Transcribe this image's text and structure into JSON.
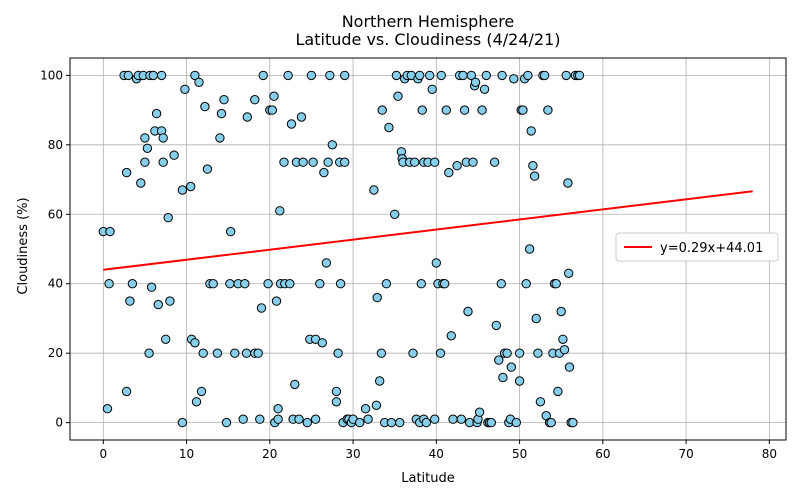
{
  "chart_data": {
    "type": "scatter",
    "title": "Northern Hemisphere",
    "subtitle": "Latitude vs. Cloudiness (4/24/21)",
    "xlabel": "Latitude",
    "ylabel": "Cloudiness (%)",
    "xlim": [
      -4,
      82
    ],
    "ylim": [
      -5,
      105
    ],
    "xticks": [
      0,
      10,
      20,
      30,
      40,
      50,
      60,
      70,
      80
    ],
    "yticks": [
      0,
      20,
      40,
      60,
      80,
      100
    ],
    "grid": true,
    "legend_position": "right",
    "marker_color": "#87ceeb",
    "marker_edge": "#000000",
    "regression": {
      "label": "y=0.29x+44.01",
      "slope": 0.29,
      "intercept": 44.01,
      "x_range": [
        0,
        78
      ],
      "color": "#ff0000"
    },
    "points": [
      [
        0.0,
        55
      ],
      [
        0.5,
        4
      ],
      [
        0.7,
        40
      ],
      [
        0.8,
        55
      ],
      [
        2.5,
        100
      ],
      [
        2.8,
        9
      ],
      [
        2.8,
        72
      ],
      [
        3.0,
        100
      ],
      [
        3.2,
        35
      ],
      [
        3.5,
        40
      ],
      [
        4.0,
        99
      ],
      [
        4.2,
        100
      ],
      [
        4.5,
        69
      ],
      [
        4.8,
        100
      ],
      [
        5.0,
        75
      ],
      [
        5.0,
        82
      ],
      [
        5.3,
        79
      ],
      [
        5.5,
        20
      ],
      [
        5.6,
        100
      ],
      [
        5.8,
        39
      ],
      [
        6.0,
        100
      ],
      [
        6.2,
        84
      ],
      [
        6.4,
        89
      ],
      [
        6.6,
        34
      ],
      [
        7.0,
        100
      ],
      [
        7.0,
        84
      ],
      [
        7.2,
        82
      ],
      [
        7.2,
        75
      ],
      [
        7.5,
        24
      ],
      [
        7.8,
        59
      ],
      [
        8.0,
        35
      ],
      [
        8.5,
        77
      ],
      [
        9.5,
        0
      ],
      [
        9.5,
        67
      ],
      [
        9.8,
        96
      ],
      [
        10.5,
        68
      ],
      [
        10.6,
        24
      ],
      [
        11.0,
        100
      ],
      [
        11.0,
        23
      ],
      [
        11.2,
        6
      ],
      [
        11.5,
        98
      ],
      [
        11.8,
        9
      ],
      [
        12.0,
        20
      ],
      [
        12.2,
        91
      ],
      [
        12.5,
        73
      ],
      [
        12.8,
        40
      ],
      [
        13.2,
        40
      ],
      [
        13.7,
        20
      ],
      [
        14.0,
        82
      ],
      [
        14.2,
        89
      ],
      [
        14.5,
        93
      ],
      [
        14.8,
        0
      ],
      [
        15.2,
        40
      ],
      [
        15.3,
        55
      ],
      [
        15.8,
        20
      ],
      [
        16.2,
        40
      ],
      [
        16.8,
        1
      ],
      [
        17.0,
        40
      ],
      [
        17.2,
        20
      ],
      [
        17.3,
        88
      ],
      [
        18.2,
        93
      ],
      [
        18.2,
        20
      ],
      [
        18.6,
        20
      ],
      [
        18.8,
        1
      ],
      [
        19.0,
        33
      ],
      [
        19.2,
        100
      ],
      [
        19.8,
        40
      ],
      [
        20.0,
        90
      ],
      [
        20.3,
        90
      ],
      [
        20.5,
        94
      ],
      [
        20.6,
        0
      ],
      [
        20.8,
        35
      ],
      [
        21.0,
        1
      ],
      [
        21.0,
        4
      ],
      [
        21.2,
        61
      ],
      [
        21.3,
        40
      ],
      [
        21.7,
        75
      ],
      [
        21.8,
        40
      ],
      [
        22.2,
        100
      ],
      [
        22.4,
        40
      ],
      [
        22.6,
        86
      ],
      [
        22.8,
        1
      ],
      [
        23.0,
        11
      ],
      [
        23.2,
        75
      ],
      [
        23.5,
        1
      ],
      [
        23.8,
        88
      ],
      [
        24.0,
        75
      ],
      [
        24.5,
        0
      ],
      [
        24.8,
        24
      ],
      [
        25.0,
        100
      ],
      [
        25.2,
        75
      ],
      [
        25.5,
        1
      ],
      [
        25.5,
        24
      ],
      [
        26.0,
        40
      ],
      [
        26.3,
        23
      ],
      [
        26.5,
        72
      ],
      [
        26.8,
        46
      ],
      [
        27.0,
        75
      ],
      [
        27.2,
        100
      ],
      [
        27.5,
        80
      ],
      [
        28.0,
        9
      ],
      [
        28.0,
        6
      ],
      [
        28.2,
        20
      ],
      [
        28.4,
        75
      ],
      [
        28.5,
        40
      ],
      [
        28.8,
        0
      ],
      [
        29.0,
        100
      ],
      [
        29.0,
        75
      ],
      [
        29.3,
        1
      ],
      [
        29.5,
        1
      ],
      [
        29.8,
        0
      ],
      [
        30.0,
        1
      ],
      [
        30.8,
        0
      ],
      [
        31.5,
        4
      ],
      [
        31.8,
        1
      ],
      [
        32.5,
        67
      ],
      [
        32.8,
        5
      ],
      [
        32.9,
        36
      ],
      [
        33.2,
        12
      ],
      [
        33.4,
        20
      ],
      [
        33.5,
        90
      ],
      [
        33.8,
        0
      ],
      [
        34.0,
        40
      ],
      [
        34.3,
        85
      ],
      [
        34.6,
        0
      ],
      [
        35.0,
        60
      ],
      [
        35.2,
        100
      ],
      [
        35.4,
        94
      ],
      [
        35.6,
        0
      ],
      [
        35.8,
        78
      ],
      [
        35.9,
        76
      ],
      [
        36.0,
        75
      ],
      [
        36.2,
        99
      ],
      [
        36.5,
        100
      ],
      [
        36.8,
        75
      ],
      [
        37.0,
        100
      ],
      [
        37.2,
        20
      ],
      [
        37.4,
        75
      ],
      [
        37.6,
        1
      ],
      [
        37.8,
        99
      ],
      [
        38.0,
        100
      ],
      [
        38.0,
        0
      ],
      [
        38.2,
        40
      ],
      [
        38.3,
        90
      ],
      [
        38.5,
        75
      ],
      [
        38.5,
        1
      ],
      [
        38.8,
        0
      ],
      [
        39.0,
        75
      ],
      [
        39.2,
        100
      ],
      [
        39.5,
        96
      ],
      [
        39.8,
        1
      ],
      [
        39.8,
        75
      ],
      [
        40.0,
        46
      ],
      [
        40.2,
        40
      ],
      [
        40.5,
        20
      ],
      [
        40.6,
        100
      ],
      [
        40.8,
        40
      ],
      [
        41.0,
        40
      ],
      [
        41.2,
        90
      ],
      [
        41.5,
        72
      ],
      [
        41.8,
        25
      ],
      [
        42.0,
        1
      ],
      [
        42.5,
        74
      ],
      [
        42.8,
        100
      ],
      [
        43.0,
        1
      ],
      [
        43.2,
        100
      ],
      [
        43.4,
        90
      ],
      [
        43.6,
        75
      ],
      [
        43.8,
        32
      ],
      [
        44.0,
        0
      ],
      [
        44.2,
        100
      ],
      [
        44.4,
        75
      ],
      [
        44.6,
        97
      ],
      [
        44.7,
        98
      ],
      [
        44.9,
        0
      ],
      [
        45.0,
        1
      ],
      [
        45.2,
        3
      ],
      [
        45.5,
        90
      ],
      [
        45.8,
        96
      ],
      [
        46.0,
        100
      ],
      [
        46.2,
        0
      ],
      [
        46.4,
        0
      ],
      [
        46.6,
        0
      ],
      [
        47.0,
        75
      ],
      [
        47.2,
        28
      ],
      [
        47.5,
        18
      ],
      [
        47.8,
        40
      ],
      [
        47.9,
        100
      ],
      [
        48.0,
        13
      ],
      [
        48.2,
        20
      ],
      [
        48.5,
        20
      ],
      [
        48.7,
        0
      ],
      [
        48.9,
        1
      ],
      [
        49.0,
        16
      ],
      [
        49.3,
        99
      ],
      [
        49.6,
        0
      ],
      [
        50.0,
        20
      ],
      [
        50.0,
        12
      ],
      [
        50.2,
        90
      ],
      [
        50.4,
        90
      ],
      [
        50.6,
        99
      ],
      [
        50.8,
        40
      ],
      [
        51.0,
        100
      ],
      [
        51.2,
        50
      ],
      [
        51.4,
        84
      ],
      [
        51.6,
        74
      ],
      [
        51.8,
        71
      ],
      [
        52.0,
        30
      ],
      [
        52.2,
        20
      ],
      [
        52.5,
        6
      ],
      [
        52.8,
        100
      ],
      [
        53.0,
        100
      ],
      [
        53.2,
        2
      ],
      [
        53.4,
        90
      ],
      [
        53.6,
        0
      ],
      [
        53.8,
        0
      ],
      [
        54.0,
        20
      ],
      [
        54.2,
        40
      ],
      [
        54.4,
        40
      ],
      [
        54.6,
        9
      ],
      [
        54.8,
        20
      ],
      [
        55.0,
        32
      ],
      [
        55.2,
        24
      ],
      [
        55.4,
        21
      ],
      [
        55.6,
        100
      ],
      [
        55.8,
        69
      ],
      [
        55.9,
        43
      ],
      [
        56.0,
        16
      ],
      [
        56.2,
        0
      ],
      [
        56.4,
        0
      ],
      [
        56.7,
        100
      ],
      [
        57.0,
        100
      ],
      [
        57.2,
        100
      ]
    ]
  }
}
